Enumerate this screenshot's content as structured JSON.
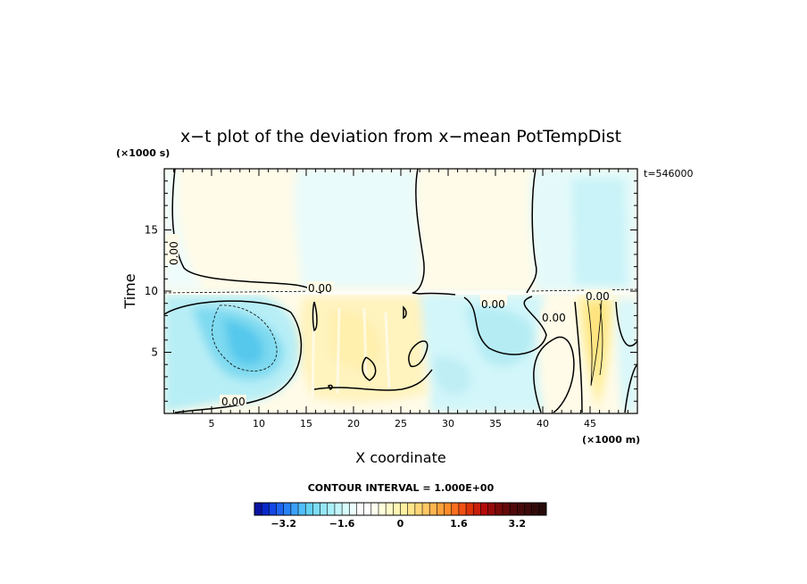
{
  "chart_data": {
    "type": "heatmap",
    "title": "x−t plot of the deviation from x−mean PotTempDist",
    "xlabel": "X coordinate",
    "ylabel": "Time",
    "x_unit": "(×1000 m)",
    "y_unit": "(×1000 s)",
    "time_stamp": "t=546000",
    "xlim": [
      0,
      50
    ],
    "ylim": [
      0,
      20
    ],
    "x_ticks": [
      "5",
      "10",
      "15",
      "20",
      "25",
      "30",
      "35",
      "40",
      "45"
    ],
    "x_tick_values": [
      5,
      10,
      15,
      20,
      25,
      30,
      35,
      40,
      45
    ],
    "y_ticks": [
      "5",
      "10",
      "15"
    ],
    "y_tick_values": [
      5,
      10,
      15
    ],
    "contour_interval_text": "CONTOUR INTERVAL = 1.000E+00",
    "contour_label": "0.00",
    "colorbar": {
      "min": -4,
      "max": 4,
      "step": 0.2,
      "tick_labels": [
        "−3.2",
        "−1.6",
        "0",
        "1.6",
        "3.2"
      ],
      "tick_values": [
        -3.2,
        -1.6,
        0,
        1.6,
        3.2
      ],
      "colors": [
        "#0a14a0",
        "#0a28c8",
        "#1446e6",
        "#1e64f0",
        "#2882f5",
        "#3ca0fa",
        "#50befa",
        "#64d2f5",
        "#7ddcf5",
        "#96e6f5",
        "#aaf0fa",
        "#c3f5fa",
        "#d7fafa",
        "#ebfdfd",
        "#fafafa",
        "#ffffff",
        "#fffff0",
        "#ffffdc",
        "#fffac8",
        "#fff5b4",
        "#fff0a0",
        "#ffe68c",
        "#ffd778",
        "#ffc864",
        "#ffb450",
        "#ffa03c",
        "#ff8c28",
        "#fa6e1e",
        "#f05014",
        "#dc320a",
        "#c81e0a",
        "#b40a0a",
        "#960a0a",
        "#780a0a",
        "#640a0a",
        "#500a0a",
        "#460a0a",
        "#3c0a0a",
        "#320a0a",
        "#280a0a"
      ]
    }
  }
}
